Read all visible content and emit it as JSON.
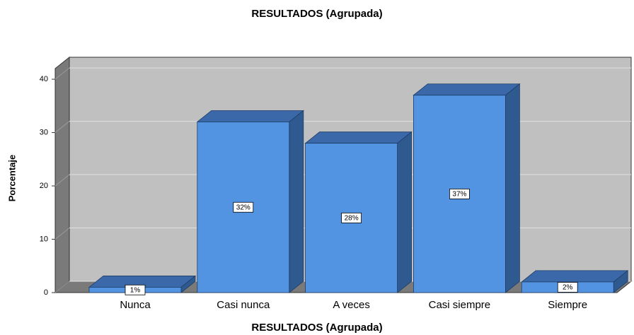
{
  "chart_data": {
    "type": "bar",
    "title": "RESULTADOS (Agrupada)",
    "x_label": "RESULTADOS (Agrupada)",
    "y_label": "Porcentaje",
    "categories": [
      "Nunca",
      "Casi nunca",
      "A veces",
      "Casi siempre",
      "Siempre"
    ],
    "values": [
      1,
      32,
      28,
      37,
      2
    ],
    "value_labels": [
      "1%",
      "32%",
      "28%",
      "37%",
      "2%"
    ],
    "color": "#5294e2",
    "ylim": [
      0,
      42
    ],
    "yticks": [
      0,
      10,
      20,
      30,
      40
    ],
    "grid": true
  }
}
